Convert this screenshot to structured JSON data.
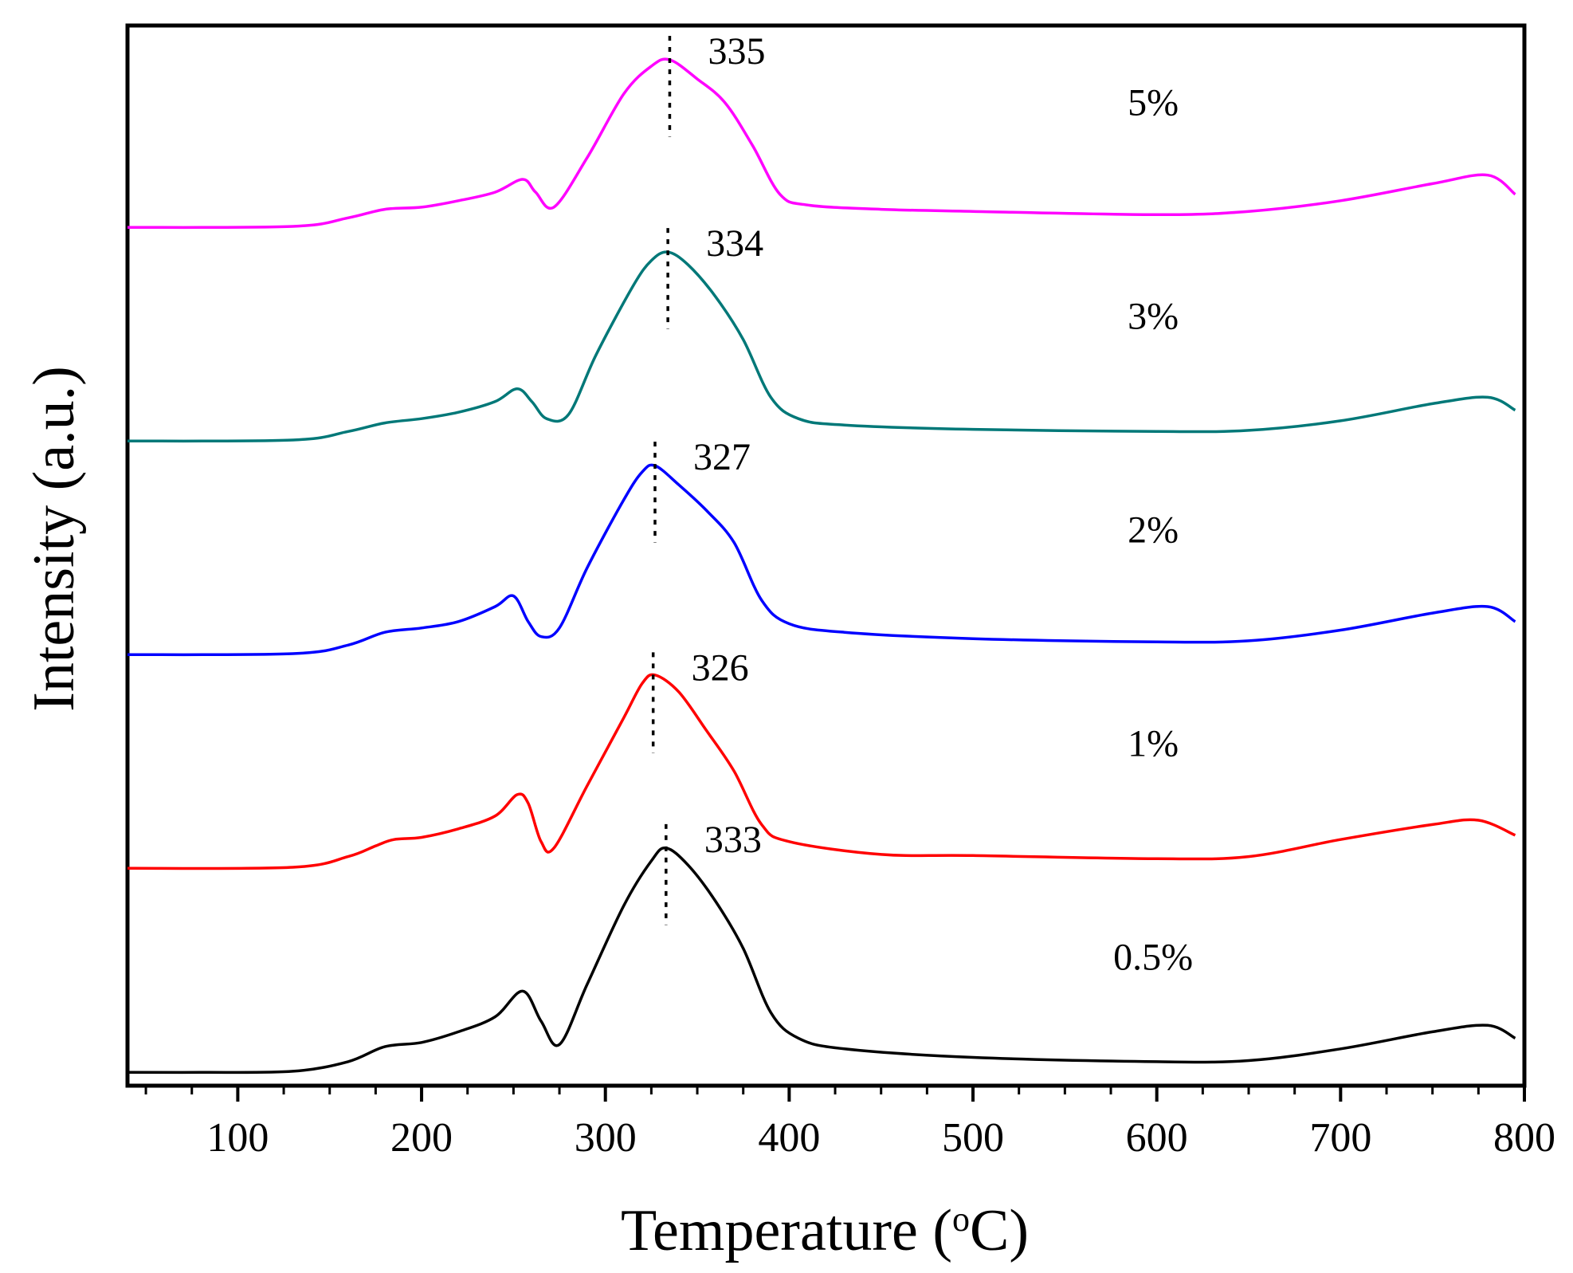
{
  "chart_data": {
    "type": "line",
    "title": "",
    "xlabel": {
      "text": "Temperature (",
      "superscript": "o",
      "unit": "C)"
    },
    "ylabel": "Intensity (a.u.)",
    "xlim": [
      40,
      800
    ],
    "ylim": [
      0,
      5
    ],
    "y_ticks_shown": false,
    "x_ticks": [
      100,
      200,
      300,
      400,
      500,
      600,
      700,
      800
    ],
    "x_tick_labels": [
      "100",
      "200",
      "300",
      "400",
      "500",
      "600",
      "700",
      "800"
    ],
    "x_minor_step": 25,
    "grid": false,
    "legend": "none (series labeled inline at right)",
    "series": [
      {
        "name": "0.5%",
        "color": "#000000",
        "offset": 0,
        "peak": {
          "x": 333,
          "label": "333"
        },
        "points": [
          [
            40,
            0.04
          ],
          [
            80,
            0.04
          ],
          [
            130,
            0.045
          ],
          [
            160,
            0.09
          ],
          [
            180,
            0.16
          ],
          [
            200,
            0.18
          ],
          [
            220,
            0.23
          ],
          [
            240,
            0.3
          ],
          [
            255,
            0.42
          ],
          [
            265,
            0.28
          ],
          [
            275,
            0.17
          ],
          [
            290,
            0.45
          ],
          [
            310,
            0.82
          ],
          [
            325,
            1.03
          ],
          [
            333,
            1.09
          ],
          [
            345,
            1.01
          ],
          [
            360,
            0.84
          ],
          [
            375,
            0.62
          ],
          [
            390,
            0.32
          ],
          [
            405,
            0.2
          ],
          [
            430,
            0.15
          ],
          [
            500,
            0.11
          ],
          [
            600,
            0.09
          ],
          [
            650,
            0.095
          ],
          [
            700,
            0.15
          ],
          [
            750,
            0.23
          ],
          [
            780,
            0.26
          ],
          [
            795,
            0.2
          ]
        ]
      },
      {
        "name": "1%",
        "color": "#ff0000",
        "offset": 1,
        "peak": {
          "x": 326,
          "label": "326"
        },
        "points": [
          [
            40,
            0.995
          ],
          [
            130,
            1.0
          ],
          [
            160,
            1.05
          ],
          [
            175,
            1.1
          ],
          [
            185,
            1.13
          ],
          [
            200,
            1.14
          ],
          [
            220,
            1.18
          ],
          [
            240,
            1.24
          ],
          [
            252,
            1.34
          ],
          [
            258,
            1.3
          ],
          [
            265,
            1.12
          ],
          [
            272,
            1.09
          ],
          [
            290,
            1.38
          ],
          [
            310,
            1.7
          ],
          [
            320,
            1.86
          ],
          [
            327,
            1.9
          ],
          [
            340,
            1.82
          ],
          [
            355,
            1.64
          ],
          [
            370,
            1.45
          ],
          [
            385,
            1.2
          ],
          [
            400,
            1.12
          ],
          [
            450,
            1.06
          ],
          [
            500,
            1.055
          ],
          [
            600,
            1.04
          ],
          [
            650,
            1.05
          ],
          [
            700,
            1.13
          ],
          [
            750,
            1.2
          ],
          [
            775,
            1.22
          ],
          [
            795,
            1.15
          ]
        ]
      },
      {
        "name": "2%",
        "color": "#0000ff",
        "offset": 2,
        "peak": {
          "x": 327,
          "label": "327"
        },
        "points": [
          [
            40,
            1.995
          ],
          [
            130,
            2.0
          ],
          [
            160,
            2.04
          ],
          [
            180,
            2.1
          ],
          [
            200,
            2.12
          ],
          [
            220,
            2.15
          ],
          [
            240,
            2.22
          ],
          [
            250,
            2.27
          ],
          [
            258,
            2.15
          ],
          [
            265,
            2.08
          ],
          [
            275,
            2.12
          ],
          [
            290,
            2.4
          ],
          [
            310,
            2.72
          ],
          [
            320,
            2.85
          ],
          [
            327,
            2.88
          ],
          [
            340,
            2.79
          ],
          [
            355,
            2.67
          ],
          [
            370,
            2.52
          ],
          [
            385,
            2.25
          ],
          [
            400,
            2.14
          ],
          [
            430,
            2.1
          ],
          [
            500,
            2.07
          ],
          [
            600,
            2.055
          ],
          [
            650,
            2.06
          ],
          [
            700,
            2.11
          ],
          [
            750,
            2.19
          ],
          [
            780,
            2.22
          ],
          [
            795,
            2.15
          ]
        ]
      },
      {
        "name": "3%",
        "color": "#007878",
        "offset": 3,
        "peak": {
          "x": 334,
          "label": "334"
        },
        "points": [
          [
            40,
            2.995
          ],
          [
            130,
            3.0
          ],
          [
            160,
            3.04
          ],
          [
            180,
            3.08
          ],
          [
            200,
            3.1
          ],
          [
            220,
            3.13
          ],
          [
            240,
            3.18
          ],
          [
            252,
            3.24
          ],
          [
            260,
            3.18
          ],
          [
            268,
            3.1
          ],
          [
            280,
            3.12
          ],
          [
            295,
            3.4
          ],
          [
            315,
            3.72
          ],
          [
            325,
            3.84
          ],
          [
            334,
            3.88
          ],
          [
            345,
            3.82
          ],
          [
            360,
            3.67
          ],
          [
            375,
            3.47
          ],
          [
            390,
            3.2
          ],
          [
            405,
            3.1
          ],
          [
            430,
            3.07
          ],
          [
            500,
            3.05
          ],
          [
            600,
            3.04
          ],
          [
            650,
            3.045
          ],
          [
            700,
            3.09
          ],
          [
            750,
            3.17
          ],
          [
            780,
            3.2
          ],
          [
            795,
            3.14
          ]
        ]
      },
      {
        "name": "5%",
        "color": "#ff00ff",
        "offset": 4,
        "peak": {
          "x": 335,
          "label": "335"
        },
        "points": [
          [
            40,
            3.995
          ],
          [
            130,
            4.0
          ],
          [
            160,
            4.04
          ],
          [
            180,
            4.08
          ],
          [
            200,
            4.09
          ],
          [
            220,
            4.12
          ],
          [
            240,
            4.16
          ],
          [
            255,
            4.22
          ],
          [
            262,
            4.16
          ],
          [
            272,
            4.09
          ],
          [
            290,
            4.32
          ],
          [
            310,
            4.62
          ],
          [
            325,
            4.75
          ],
          [
            335,
            4.78
          ],
          [
            350,
            4.69
          ],
          [
            365,
            4.58
          ],
          [
            380,
            4.38
          ],
          [
            395,
            4.15
          ],
          [
            410,
            4.1
          ],
          [
            450,
            4.08
          ],
          [
            500,
            4.07
          ],
          [
            600,
            4.055
          ],
          [
            650,
            4.07
          ],
          [
            700,
            4.12
          ],
          [
            750,
            4.2
          ],
          [
            780,
            4.24
          ],
          [
            795,
            4.15
          ]
        ]
      }
    ]
  }
}
